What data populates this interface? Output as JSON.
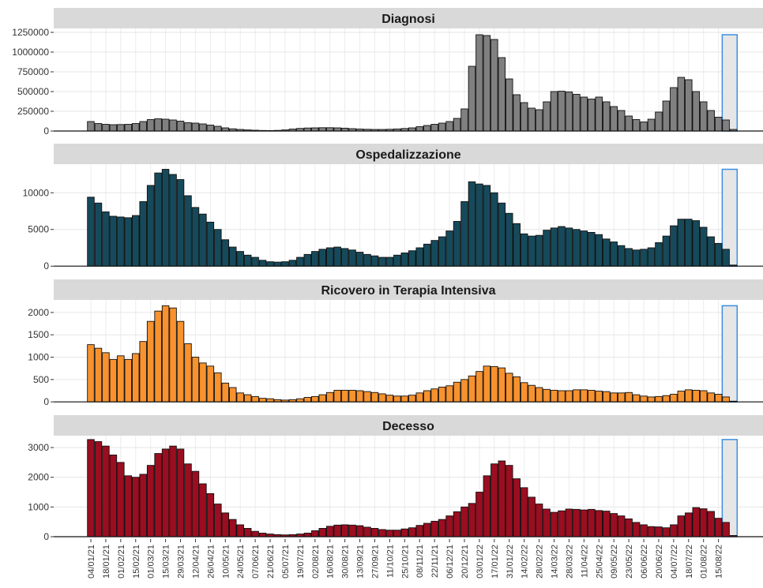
{
  "chart_data": {
    "type": "bar",
    "categories": [
      "04/01/21",
      null,
      "18/01/21",
      null,
      "01/02/21",
      null,
      "15/02/21",
      null,
      "01/03/21",
      null,
      "15/03/21",
      null,
      "29/03/21",
      null,
      "12/04/21",
      null,
      "26/04/21",
      null,
      "10/05/21",
      null,
      "24/05/21",
      null,
      "07/06/21",
      null,
      "21/06/21",
      null,
      "05/07/21",
      null,
      "19/07/21",
      null,
      "02/08/21",
      null,
      "16/08/21",
      null,
      "30/08/21",
      null,
      "13/09/21",
      null,
      "27/09/21",
      null,
      "11/10/21",
      null,
      "25/10/21",
      null,
      "08/11/21",
      null,
      "22/11/21",
      null,
      "06/12/21",
      null,
      "20/12/21",
      null,
      "03/01/22",
      null,
      "17/01/22",
      null,
      "31/01/22",
      null,
      "14/02/22",
      null,
      "28/02/22",
      null,
      "14/03/22",
      null,
      "28/03/22",
      null,
      "11/04/22",
      null,
      "25/04/22",
      null,
      "09/05/22",
      null,
      "23/05/22",
      null,
      "06/06/22",
      null,
      "20/06/22",
      null,
      "04/07/22",
      null,
      "18/07/22",
      null,
      "01/08/22",
      null,
      "15/08/22",
      null,
      null
    ],
    "panels": [
      {
        "title": "Diagnosi",
        "color": "#808080",
        "ylim": [
          -20000,
          1300000
        ],
        "yticks": [
          0,
          250000,
          500000,
          750000,
          1000000,
          1250000
        ],
        "values": [
          120000,
          95000,
          85000,
          80000,
          82000,
          85000,
          95000,
          120000,
          145000,
          155000,
          150000,
          140000,
          125000,
          105000,
          100000,
          90000,
          75000,
          60000,
          40000,
          28000,
          20000,
          14000,
          10000,
          7000,
          6000,
          8000,
          14000,
          25000,
          33000,
          38000,
          40000,
          42000,
          42000,
          40000,
          36000,
          30000,
          25000,
          22000,
          20000,
          20000,
          22000,
          26000,
          32000,
          40000,
          55000,
          70000,
          85000,
          100000,
          120000,
          160000,
          280000,
          820000,
          1220000,
          1210000,
          1160000,
          930000,
          660000,
          460000,
          360000,
          290000,
          270000,
          370000,
          500000,
          505000,
          495000,
          465000,
          430000,
          405000,
          430000,
          370000,
          310000,
          260000,
          190000,
          145000,
          115000,
          150000,
          240000,
          380000,
          550000,
          680000,
          650000,
          500000,
          370000,
          260000,
          175000,
          140000,
          20000
        ]
      },
      {
        "title": "Ospedalizzazione",
        "color": "#164a5b",
        "ylim": [
          -300,
          13900
        ],
        "yticks": [
          0,
          5000,
          10000
        ],
        "values": [
          9400,
          8600,
          7400,
          6800,
          6700,
          6600,
          6900,
          8800,
          11000,
          12700,
          13200,
          12500,
          11800,
          9600,
          8000,
          7100,
          6000,
          5000,
          3600,
          2600,
          2000,
          1500,
          1200,
          800,
          600,
          550,
          600,
          800,
          1200,
          1600,
          2000,
          2300,
          2500,
          2600,
          2400,
          2200,
          1900,
          1600,
          1400,
          1200,
          1200,
          1500,
          1800,
          2100,
          2500,
          3000,
          3500,
          4000,
          4800,
          6100,
          8800,
          11500,
          11200,
          11000,
          10000,
          8600,
          7200,
          5800,
          4400,
          4100,
          4200,
          4900,
          5200,
          5400,
          5200,
          5000,
          4800,
          4600,
          4300,
          3700,
          3300,
          2800,
          2400,
          2200,
          2300,
          2500,
          3200,
          4100,
          5500,
          6400,
          6400,
          6200,
          5300,
          4000,
          3100,
          2300,
          150
        ]
      },
      {
        "title": "Ricovero in Terapia Intensiva",
        "color": "#f7922e",
        "ylim": [
          -50,
          2280
        ],
        "yticks": [
          0,
          500,
          1000,
          1500,
          2000
        ],
        "values": [
          1280,
          1200,
          1100,
          950,
          1030,
          950,
          1080,
          1350,
          1800,
          2030,
          2150,
          2100,
          1800,
          1300,
          1000,
          870,
          800,
          650,
          420,
          320,
          200,
          160,
          120,
          80,
          70,
          50,
          40,
          50,
          70,
          100,
          120,
          160,
          210,
          260,
          260,
          260,
          250,
          230,
          210,
          180,
          150,
          130,
          130,
          150,
          200,
          250,
          290,
          330,
          360,
          440,
          500,
          580,
          680,
          800,
          790,
          760,
          640,
          560,
          430,
          370,
          320,
          280,
          260,
          250,
          250,
          270,
          270,
          260,
          240,
          230,
          200,
          200,
          210,
          160,
          130,
          110,
          120,
          140,
          170,
          240,
          270,
          260,
          250,
          200,
          170,
          110,
          15
        ]
      },
      {
        "title": "Decesso",
        "color": "#9b0d20",
        "ylim": [
          -80,
          3400
        ],
        "yticks": [
          0,
          1000,
          2000,
          3000
        ],
        "values": [
          3270,
          3200,
          3050,
          2750,
          2500,
          2050,
          2000,
          2100,
          2400,
          2800,
          2950,
          3050,
          2950,
          2450,
          2200,
          1780,
          1450,
          1100,
          800,
          580,
          400,
          280,
          180,
          120,
          90,
          70,
          60,
          70,
          90,
          120,
          200,
          280,
          350,
          390,
          400,
          390,
          370,
          320,
          280,
          240,
          220,
          220,
          260,
          300,
          380,
          450,
          520,
          580,
          700,
          840,
          1000,
          1120,
          1500,
          2050,
          2450,
          2550,
          2400,
          1950,
          1650,
          1330,
          1100,
          930,
          820,
          870,
          930,
          920,
          900,
          920,
          880,
          860,
          780,
          700,
          600,
          480,
          400,
          340,
          330,
          300,
          400,
          700,
          800,
          980,
          940,
          850,
          620,
          480,
          40
        ]
      }
    ]
  }
}
